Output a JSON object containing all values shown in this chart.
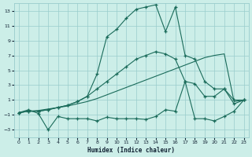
{
  "xlabel": "Humidex (Indice chaleur)",
  "bg_color": "#cceee8",
  "grid_color": "#99cccc",
  "line_color": "#1a6b5a",
  "text_color": "#112233",
  "xlim": [
    -0.5,
    23.5
  ],
  "ylim": [
    -4,
    14
  ],
  "yticks": [
    -3,
    -1,
    1,
    3,
    5,
    7,
    9,
    11,
    13
  ],
  "xticks": [
    0,
    1,
    2,
    3,
    4,
    5,
    6,
    7,
    8,
    9,
    10,
    11,
    12,
    13,
    14,
    15,
    16,
    17,
    18,
    19,
    20,
    21,
    22,
    23
  ],
  "curves": [
    {
      "x": [
        0,
        1,
        2,
        3,
        4,
        5,
        6,
        7,
        8,
        9,
        10,
        11,
        12,
        13,
        14,
        15,
        16,
        17,
        18,
        19,
        20,
        21,
        22,
        23
      ],
      "y": [
        -0.7,
        -0.3,
        -0.8,
        -3.0,
        -1.2,
        -1.5,
        -1.5,
        -1.5,
        -1.8,
        -1.3,
        -1.5,
        -1.5,
        -1.5,
        -1.6,
        -1.2,
        -0.3,
        -0.5,
        3.5,
        -1.5,
        -1.5,
        -1.8,
        -1.2,
        -0.5,
        1.0
      ],
      "marker": true,
      "lw": 0.8
    },
    {
      "x": [
        0,
        1,
        2,
        3,
        4,
        5,
        6,
        7,
        8,
        9,
        10,
        11,
        12,
        13,
        14,
        15,
        16,
        17,
        18,
        19,
        20,
        21,
        22,
        23
      ],
      "y": [
        -0.7,
        -0.5,
        -0.4,
        -0.2,
        0.0,
        0.2,
        0.5,
        0.8,
        1.2,
        1.7,
        2.2,
        2.7,
        3.2,
        3.7,
        4.2,
        4.7,
        5.2,
        5.7,
        6.2,
        6.7,
        7.0,
        7.2,
        0.8,
        1.0
      ],
      "marker": false,
      "lw": 0.8
    },
    {
      "x": [
        0,
        1,
        2,
        3,
        4,
        5,
        6,
        7,
        8,
        9,
        10,
        11,
        12,
        13,
        14,
        15,
        16,
        17,
        18,
        19,
        20,
        21,
        22,
        23
      ],
      "y": [
        -0.7,
        -0.5,
        -0.5,
        -0.3,
        0.0,
        0.3,
        0.8,
        1.5,
        4.5,
        9.5,
        10.5,
        12.0,
        13.2,
        13.5,
        13.8,
        10.2,
        13.5,
        7.0,
        6.5,
        3.5,
        2.5,
        2.5,
        1.0,
        1.0
      ],
      "marker": true,
      "lw": 0.8
    },
    {
      "x": [
        0,
        1,
        2,
        3,
        4,
        5,
        6,
        7,
        8,
        9,
        10,
        11,
        12,
        13,
        14,
        15,
        16,
        17,
        18,
        19,
        20,
        21,
        22,
        23
      ],
      "y": [
        -0.7,
        -0.5,
        -0.5,
        -0.3,
        0.0,
        0.3,
        0.8,
        1.5,
        2.5,
        3.5,
        4.5,
        5.5,
        6.5,
        7.0,
        7.5,
        7.2,
        6.5,
        3.5,
        3.2,
        1.5,
        1.5,
        2.5,
        0.5,
        1.0
      ],
      "marker": true,
      "lw": 0.8
    }
  ]
}
